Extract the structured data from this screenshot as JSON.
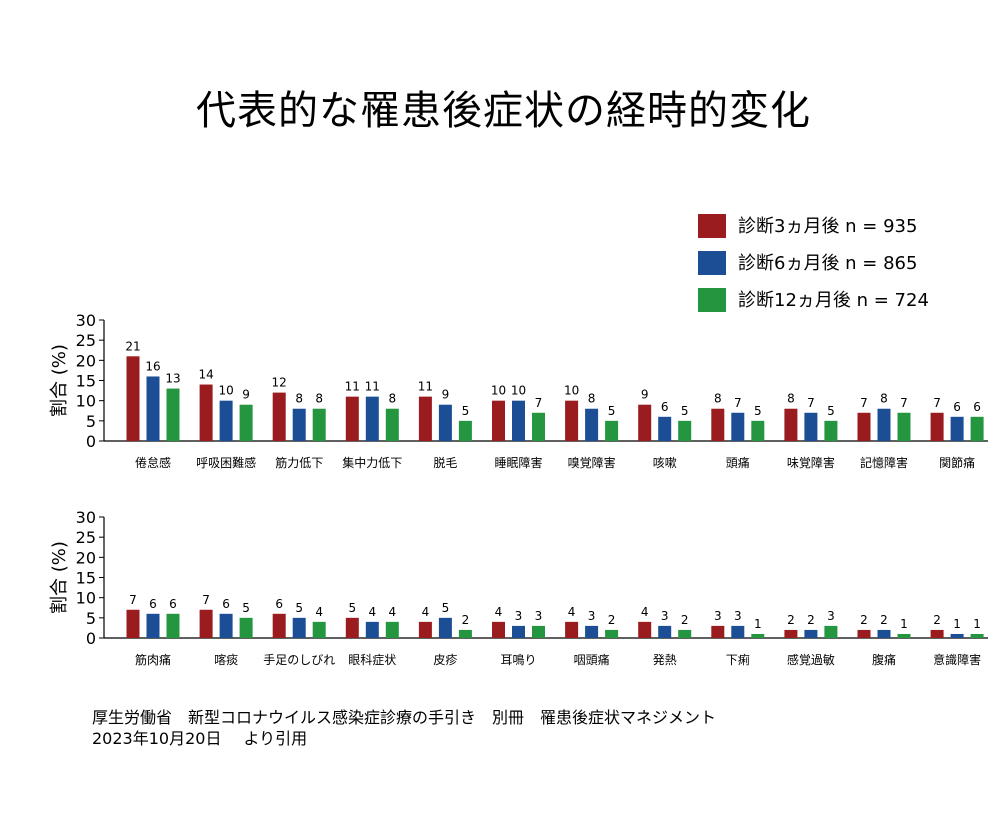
{
  "title": "代表的な罹患後症状の経時的変化",
  "source": {
    "line1": "厚生労働省　新型コロナウイルス感染症診療の手引き　別冊　罹患後症状マネジメント",
    "line2_date": "2023年10月20日",
    "line2_suffix": "より引用"
  },
  "colors": {
    "series": [
      "#9b1c1f",
      "#1c4e95",
      "#23963f"
    ]
  },
  "chart_data": [
    {
      "type": "bar",
      "ylabel": "割合 (%)",
      "ylim": [
        0,
        30
      ],
      "yticks": [
        0,
        5,
        10,
        15,
        20,
        25,
        30
      ],
      "legend": "top-right",
      "categories": [
        "倦怠感",
        "呼吸困難感",
        "筋力低下",
        "集中力低下",
        "脱毛",
        "睡眠障害",
        "嗅覚障害",
        "咳嗽",
        "頭痛",
        "味覚障害",
        "記憶障害",
        "関節痛"
      ],
      "series": [
        {
          "name": "診断3ヵ月後 n = 935",
          "values": [
            21,
            14,
            12,
            11,
            11,
            10,
            10,
            9,
            8,
            8,
            7,
            7
          ]
        },
        {
          "name": "診断6ヵ月後 n = 865",
          "values": [
            16,
            10,
            8,
            11,
            9,
            10,
            8,
            6,
            7,
            7,
            8,
            6
          ]
        },
        {
          "name": "診断12ヵ月後 n = 724",
          "values": [
            13,
            9,
            8,
            8,
            5,
            7,
            5,
            5,
            5,
            5,
            7,
            6
          ]
        }
      ]
    },
    {
      "type": "bar",
      "ylabel": "割合 (%)",
      "ylim": [
        0,
        30
      ],
      "yticks": [
        0,
        5,
        10,
        15,
        20,
        25,
        30
      ],
      "categories": [
        "筋肉痛",
        "喀痰",
        "手足のしびれ",
        "眼科症状",
        "皮疹",
        "耳鳴り",
        "咽頭痛",
        "発熱",
        "下痢",
        "感覚過敏",
        "腹痛",
        "意識障害"
      ],
      "series": [
        {
          "name": "診断3ヵ月後 n = 935",
          "values": [
            7,
            7,
            6,
            5,
            4,
            4,
            4,
            4,
            3,
            2,
            2,
            2
          ]
        },
        {
          "name": "診断6ヵ月後 n = 865",
          "values": [
            6,
            6,
            5,
            4,
            5,
            3,
            3,
            3,
            3,
            2,
            2,
            1
          ]
        },
        {
          "name": "診断12ヵ月後 n = 724",
          "values": [
            6,
            5,
            4,
            4,
            2,
            3,
            2,
            2,
            1,
            3,
            1,
            1
          ]
        }
      ]
    }
  ]
}
